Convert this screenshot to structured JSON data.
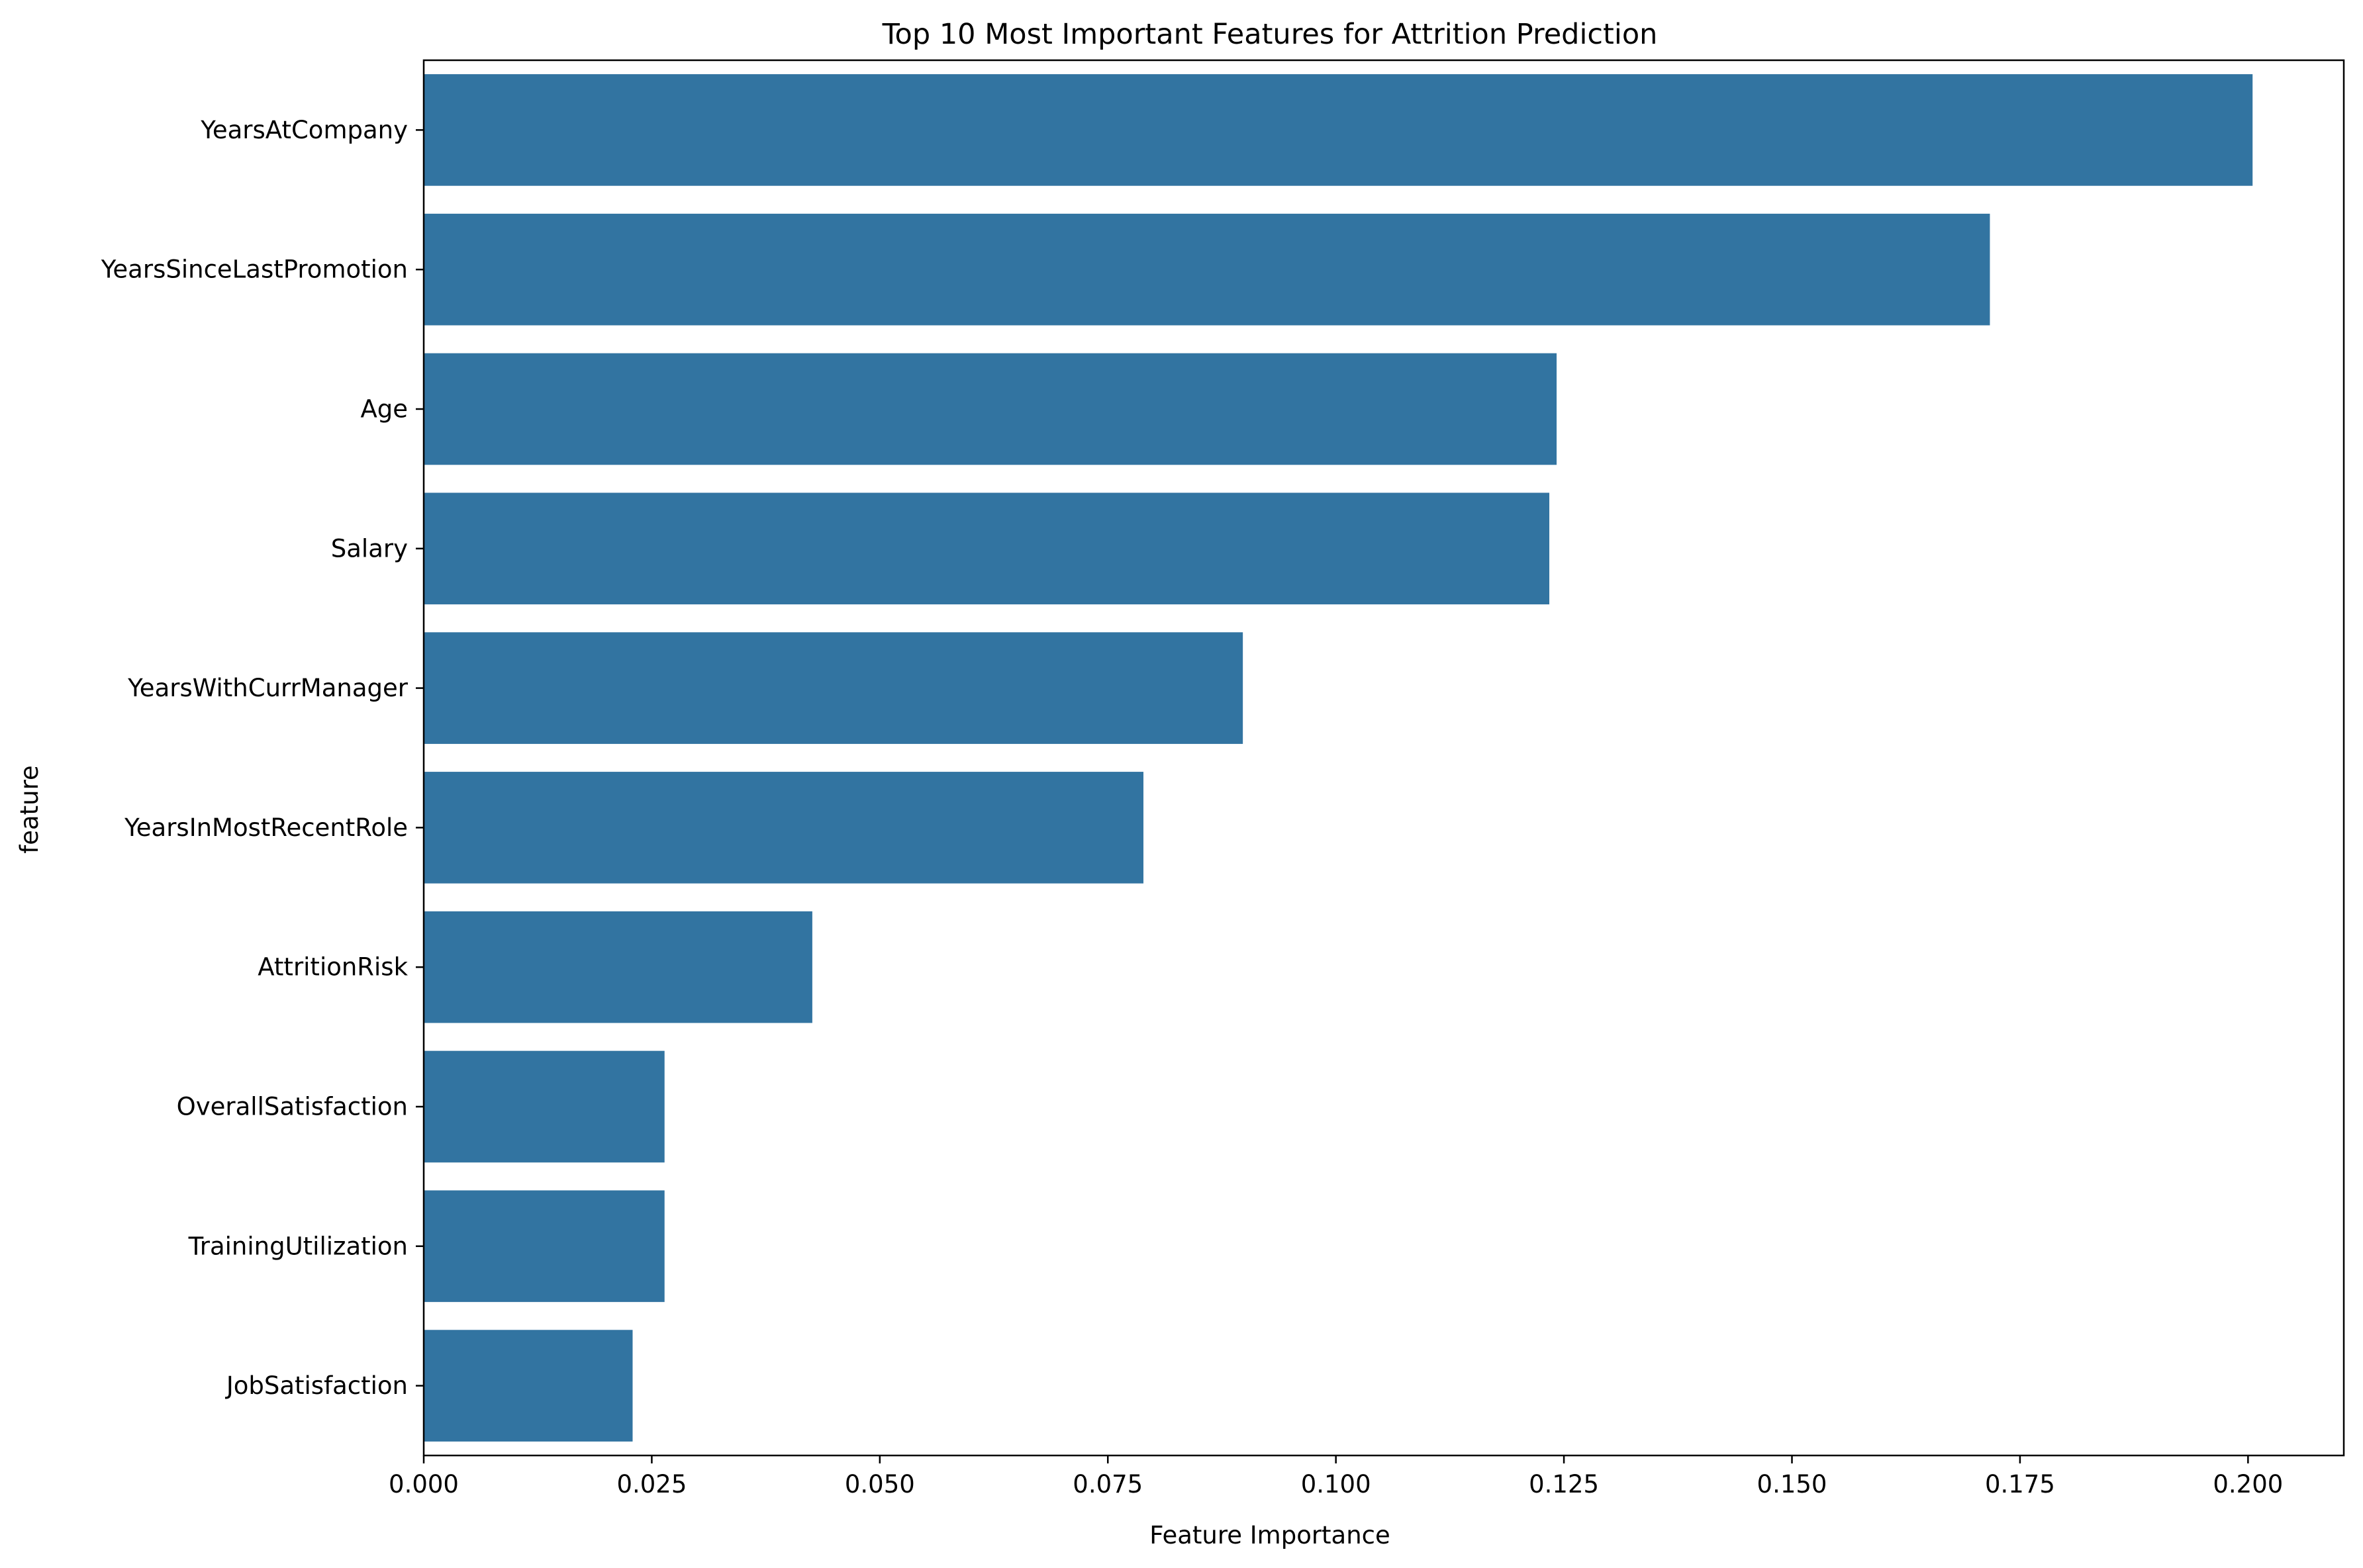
{
  "chart_data": {
    "type": "bar",
    "orientation": "horizontal",
    "title": "Top 10 Most Important Features for Attrition Prediction",
    "xlabel": "Feature Importance",
    "ylabel": "feature",
    "categories": [
      "YearsAtCompany",
      "YearsSinceLastPromotion",
      "Age",
      "Salary",
      "YearsWithCurrManager",
      "YearsInMostRecentRole",
      "AttritionRisk",
      "OverallSatisfaction",
      "TrainingUtilization",
      "JobSatisfaction"
    ],
    "values": [
      0.2005,
      0.1717,
      0.1242,
      0.1234,
      0.0898,
      0.0789,
      0.0426,
      0.0264,
      0.0264,
      0.0229
    ],
    "xlim": [
      0,
      0.2105
    ],
    "xticks": [
      "0.000",
      "0.025",
      "0.050",
      "0.075",
      "0.100",
      "0.125",
      "0.150",
      "0.175",
      "0.200"
    ],
    "xtick_values": [
      0,
      0.025,
      0.05,
      0.075,
      0.1,
      0.125,
      0.15,
      0.175,
      0.2
    ],
    "grid": false,
    "bar_color": "#3274a1"
  }
}
